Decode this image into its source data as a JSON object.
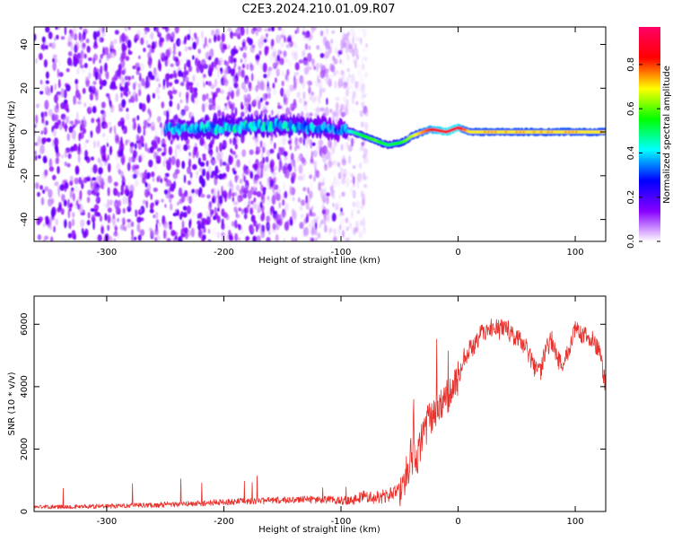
{
  "title": "C2E3.2024.210.01.09.R07",
  "chart_data": [
    {
      "type": "heatmap",
      "xlabel": "Height of straight line (km)",
      "ylabel": "Frequency (Hz)",
      "xlim": [
        -362,
        126
      ],
      "ylim": [
        -50,
        48
      ],
      "xticks": [
        -300,
        -200,
        -100,
        0,
        100
      ],
      "yticks": [
        -40,
        -20,
        0,
        20,
        40
      ],
      "colorbar": {
        "label": "Normalized spectral amplitude",
        "range": [
          0,
          0.97
        ],
        "ticks": [
          "0.0",
          "0.2",
          "0.4",
          "0.6",
          "0.8"
        ],
        "tick_values": [
          0.0,
          0.2,
          0.4,
          0.6,
          0.8
        ],
        "colors": [
          "#ffffff",
          "#8800ff",
          "#0000ff",
          "#00ffff",
          "#00ff00",
          "#ffff00",
          "#ff0000",
          "#ff0066"
        ]
      },
      "ridge": {
        "x": [
          -250,
          -200,
          -150,
          -120,
          -100,
          -90,
          -80,
          -70,
          -60,
          -50,
          -45,
          -40,
          -35,
          -30,
          -25,
          -20,
          -10,
          0,
          5,
          10,
          20,
          50,
          100,
          126
        ],
        "y": [
          1,
          2,
          3,
          2,
          1,
          0,
          -2,
          -4,
          -6,
          -5,
          -4,
          -2,
          -1,
          0,
          1,
          1,
          0,
          2,
          1,
          0,
          0,
          0,
          0,
          0
        ],
        "amplitude": [
          0.35,
          0.4,
          0.4,
          0.35,
          0.3,
          0.45,
          0.55,
          0.6,
          0.5,
          0.55,
          0.6,
          0.65,
          0.7,
          0.75,
          0.8,
          0.85,
          0.9,
          0.9,
          0.75,
          0.7,
          0.7,
          0.7,
          0.7,
          0.7
        ]
      },
      "noise_extent": {
        "x": [
          -362,
          -78
        ],
        "amplitude_range": [
          0.0,
          0.18
        ]
      }
    },
    {
      "type": "line",
      "xlabel": "Height of straight line (km)",
      "ylabel": "SNR (10 * v/v)",
      "xlim": [
        -362,
        126
      ],
      "ylim": [
        0,
        6900
      ],
      "xticks": [
        -300,
        -200,
        -100,
        0,
        100
      ],
      "yticks": [
        0,
        2000,
        4000,
        6000
      ],
      "color": "#e8322d",
      "series": [
        {
          "x": [
            -362,
            -340,
            -320,
            -300,
            -280,
            -260,
            -240,
            -220,
            -200,
            -180,
            -160,
            -140,
            -120,
            -100,
            -90,
            -80,
            -70,
            -60,
            -50,
            -45,
            -40,
            -35,
            -30,
            -25,
            -20,
            -15,
            -10,
            -5,
            0,
            5,
            10,
            15,
            20,
            25,
            30,
            35,
            40,
            45,
            50,
            55,
            60,
            65,
            70,
            75,
            80,
            85,
            90,
            95,
            100,
            105,
            110,
            115,
            120,
            126
          ],
          "y": [
            150,
            150,
            160,
            170,
            190,
            210,
            230,
            260,
            300,
            330,
            350,
            380,
            380,
            360,
            380,
            500,
            450,
            500,
            700,
            1100,
            1800,
            1600,
            2500,
            2900,
            3100,
            3400,
            3600,
            3900,
            4300,
            4900,
            5200,
            5400,
            5700,
            5800,
            5900,
            5800,
            5950,
            5700,
            5600,
            5400,
            5100,
            4600,
            4400,
            5200,
            5500,
            4900,
            4700,
            5300,
            5900,
            5700,
            5600,
            5500,
            5200,
            4000
          ]
        }
      ]
    }
  ]
}
